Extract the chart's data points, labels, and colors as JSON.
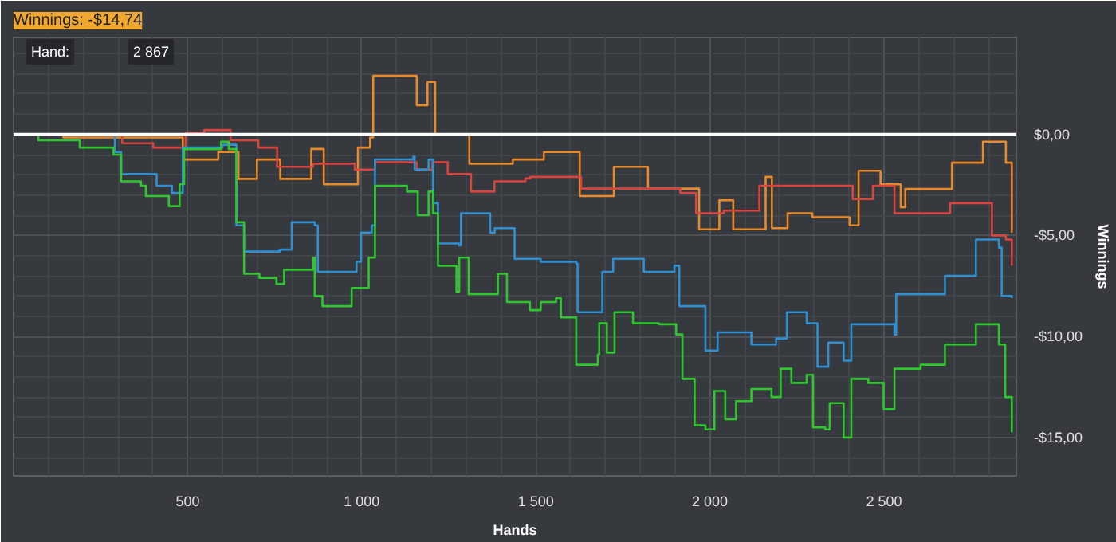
{
  "chart_data": {
    "type": "step",
    "title": "Winnings: -$14,74",
    "xlabel": "Hands",
    "ylabel": "Winnings",
    "annotations": [
      "Hand:",
      "2 867"
    ],
    "xlim": [
      0,
      2880
    ],
    "ylim": [
      -16.9,
      4.8
    ],
    "xticks": [
      {
        "value": 500,
        "label": "500"
      },
      {
        "value": 1000,
        "label": "1 000"
      },
      {
        "value": 1500,
        "label": "1 500"
      },
      {
        "value": 2000,
        "label": "2 000"
      },
      {
        "value": 2500,
        "label": "2 500"
      }
    ],
    "yticks": [
      {
        "value": 0,
        "label": "$0,00"
      },
      {
        "value": -5,
        "label": "-$5,00"
      },
      {
        "value": -10,
        "label": "-$10,00"
      },
      {
        "value": -15,
        "label": "-$15,00"
      }
    ],
    "grid": true,
    "ref_lines": [
      {
        "axis": "y",
        "value": 0,
        "color": "#ffffff"
      }
    ],
    "series": [
      {
        "color": "#e8892a",
        "x": [
          0,
          143,
          486,
          588,
          646,
          699,
          766,
          855,
          891,
          989,
          1024,
          1033,
          1145,
          1158,
          1189,
          1211,
          1309,
          1434,
          1523,
          1626,
          1724,
          1822,
          1969,
          2027,
          2067,
          2160,
          2178,
          2223,
          2294,
          2401,
          2427,
          2490,
          2548,
          2561,
          2695,
          2784,
          2850,
          2867
        ],
        "values": [
          0,
          -0.15,
          -1.24,
          -0.87,
          -2.2,
          -1.24,
          -2.2,
          -0.72,
          -2.47,
          -0.65,
          -0.15,
          2.9,
          2.9,
          1.45,
          2.6,
          0,
          -1.45,
          -1.24,
          -0.87,
          -3.05,
          -1.6,
          -2.68,
          -4.7,
          -3.26,
          -4.7,
          -2.1,
          -4.64,
          -3.9,
          -4.1,
          -4.5,
          -1.8,
          -2.47,
          -3.6,
          -2.7,
          -1.4,
          -0.36,
          -1.4,
          -4.86
        ]
      },
      {
        "color": "#d9443f",
        "x": [
          0,
          155,
          312,
          401,
          494,
          548,
          623,
          703,
          757,
          860,
          980,
          1038,
          1158,
          1203,
          1247,
          1314,
          1381,
          1470,
          1484,
          1630,
          1915,
          1960,
          2040,
          2142,
          2410,
          2468,
          2530,
          2690,
          2810,
          2850,
          2867
        ],
        "values": [
          0,
          0,
          -0.44,
          -0.65,
          0.07,
          0.22,
          -0.29,
          -0.65,
          -1.6,
          -1.45,
          -1.74,
          -1.38,
          -1.74,
          -1.38,
          -1.96,
          -2.83,
          -2.32,
          -2.18,
          -2.1,
          -2.68,
          -2.9,
          -3.9,
          -3.77,
          -2.54,
          -3.2,
          -2.54,
          -3.9,
          -3.4,
          -5.0,
          -5.2,
          -6.5
        ]
      },
      {
        "color": "#2f8fd0",
        "x": [
          0,
          146,
          291,
          309,
          411,
          455,
          486,
          600,
          640,
          662,
          764,
          799,
          865,
          874,
          985,
          998,
          1029,
          1038,
          1148,
          1152,
          1192,
          1205,
          1219,
          1280,
          1285,
          1369,
          1382,
          1439,
          1514,
          1616,
          1620,
          1678,
          1691,
          1722,
          1810,
          1898,
          1912,
          1987,
          2022,
          2119,
          2190,
          2221,
          2278,
          2309,
          2340,
          2384,
          2406,
          2530,
          2535,
          2675,
          2764,
          2830,
          2838,
          2867
        ],
        "values": [
          0,
          0,
          -0.87,
          -1.96,
          -2.54,
          -2.9,
          -0.65,
          -0.51,
          -4.5,
          -5.8,
          -5.7,
          -4.35,
          -4.5,
          -6.8,
          -6.3,
          -4.86,
          -4.5,
          -1.24,
          -1.1,
          -1.74,
          -1.24,
          -3.4,
          -5.4,
          -5.5,
          -3.9,
          -4.86,
          -4.64,
          -6.16,
          -6.3,
          -6.4,
          -8.8,
          -8.8,
          -6.8,
          -6.16,
          -6.8,
          -6.5,
          -8.5,
          -10.7,
          -9.8,
          -10.4,
          -10.1,
          -8.8,
          -9.35,
          -11.5,
          -10.3,
          -11.2,
          -9.4,
          -9.9,
          -7.9,
          -7.0,
          -5.2,
          -5.6,
          -8.0,
          -8.1
        ]
      },
      {
        "color": "#2ec72e",
        "x": [
          0,
          71,
          132,
          190,
          287,
          309,
          366,
          380,
          446,
          477,
          490,
          596,
          618,
          640,
          662,
          706,
          755,
          777,
          861,
          865,
          887,
          971,
          1020,
          1038,
          1130,
          1161,
          1192,
          1205,
          1219,
          1272,
          1280,
          1307,
          1391,
          1417,
          1483,
          1514,
          1558,
          1572,
          1616,
          1678,
          1682,
          1704,
          1726,
          1779,
          1854,
          1903,
          1921,
          1956,
          1987,
          2013,
          2044,
          2075,
          2119,
          2177,
          2203,
          2234,
          2278,
          2296,
          2331,
          2344,
          2384,
          2406,
          2455,
          2499,
          2530,
          2605,
          2675,
          2764,
          2830,
          2848,
          2867
        ],
        "values": [
          0,
          -0.29,
          -0.29,
          -0.65,
          -1.0,
          -2.32,
          -2.54,
          -3.05,
          -3.55,
          -2.46,
          -0.73,
          -0.36,
          -0.73,
          -4.35,
          -6.9,
          -7.1,
          -7.4,
          -6.7,
          -6.1,
          -8.0,
          -8.5,
          -7.6,
          -6.1,
          -2.54,
          -2.83,
          -4.0,
          -2.83,
          -3.9,
          -6.5,
          -7.8,
          -6.1,
          -7.9,
          -6.9,
          -8.3,
          -8.7,
          -8.3,
          -8.1,
          -9.06,
          -11.4,
          -10.9,
          -9.35,
          -10.8,
          -8.8,
          -9.35,
          -9.4,
          -9.9,
          -12.1,
          -14.4,
          -14.6,
          -12.7,
          -14.1,
          -13.2,
          -12.6,
          -13.0,
          -11.6,
          -12.3,
          -11.9,
          -14.5,
          -14.6,
          -13.3,
          -15.0,
          -12.1,
          -12.3,
          -13.6,
          -11.6,
          -11.4,
          -10.4,
          -9.4,
          -10.4,
          -13.0,
          -14.74
        ]
      }
    ]
  }
}
